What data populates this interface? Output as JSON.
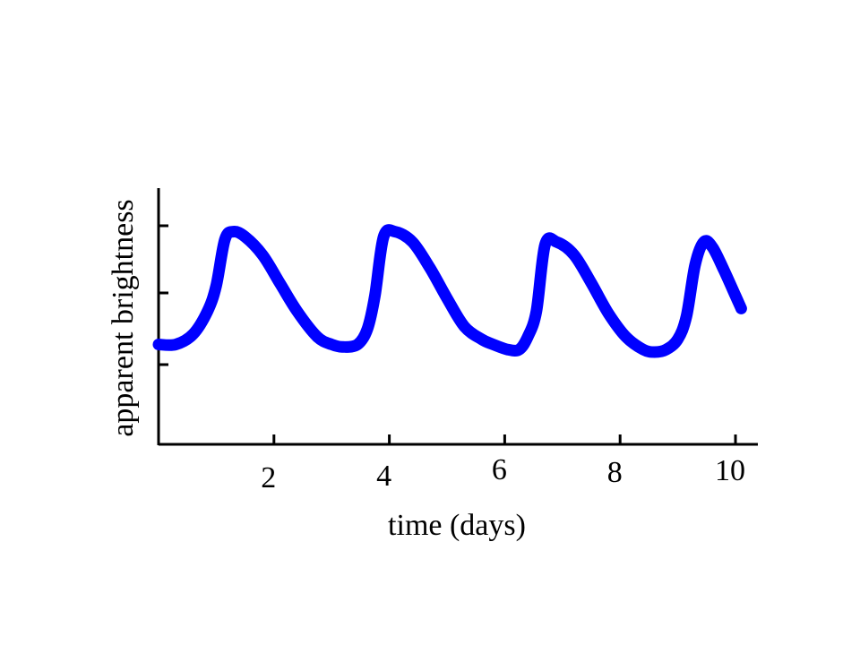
{
  "chart_data": {
    "type": "line",
    "xlabel": "time (days)",
    "ylabel": "apparent brightness",
    "x_ticks": [
      2,
      4,
      6,
      8,
      10
    ],
    "y_ticks": [],
    "xlim": [
      0,
      10
    ],
    "ylim": [
      0,
      1
    ],
    "grid": false,
    "line_color": "#0000ff",
    "axis_color": "#000000",
    "series": [
      {
        "x": [
          0,
          0.3,
          0.6,
          0.85,
          1.0,
          1.15,
          1.3,
          1.5,
          1.8,
          2.1,
          2.4,
          2.75,
          3.0,
          3.2,
          3.45,
          3.62,
          3.75,
          3.9,
          4.1,
          4.4,
          4.7,
          5.0,
          5.3,
          5.6,
          5.8,
          6.05,
          6.25,
          6.4,
          6.55,
          6.7,
          6.9,
          7.2,
          7.5,
          7.8,
          8.1,
          8.4,
          8.6,
          8.8,
          9.0,
          9.15,
          9.3,
          9.45,
          9.6,
          9.8,
          10.0,
          10.1
        ],
        "y": [
          0.39,
          0.39,
          0.43,
          0.52,
          0.62,
          0.8,
          0.83,
          0.81,
          0.74,
          0.63,
          0.52,
          0.42,
          0.39,
          0.38,
          0.39,
          0.45,
          0.58,
          0.81,
          0.83,
          0.79,
          0.69,
          0.57,
          0.46,
          0.41,
          0.39,
          0.37,
          0.37,
          0.42,
          0.52,
          0.78,
          0.79,
          0.74,
          0.63,
          0.51,
          0.42,
          0.37,
          0.36,
          0.37,
          0.41,
          0.5,
          0.7,
          0.79,
          0.77,
          0.68,
          0.58,
          0.53
        ]
      }
    ]
  }
}
